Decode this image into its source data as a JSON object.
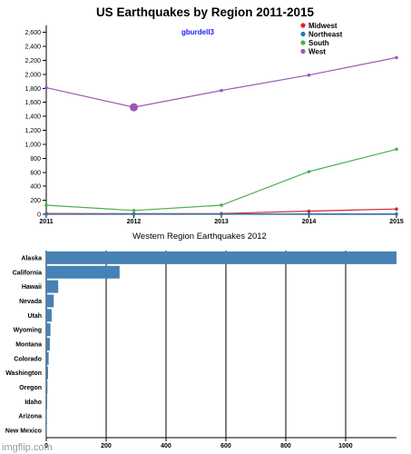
{
  "chart_data": [
    {
      "type": "line",
      "title": "US Earthquakes by Region 2011-2015",
      "annotation": "gburdell3",
      "x": [
        2011,
        2012,
        2013,
        2014,
        2015
      ],
      "ylim": [
        0,
        2700
      ],
      "yticks": [
        0,
        200,
        400,
        600,
        800,
        1000,
        1200,
        1400,
        1600,
        1800,
        2000,
        2200,
        2400,
        2600
      ],
      "ytick_labels": [
        "0",
        "200",
        "400",
        "600",
        "800",
        "1,000",
        "1,200",
        "1,400",
        "1,600",
        "1,800",
        "2,000",
        "2,200",
        "2,400",
        "2,600"
      ],
      "legend_position": "top-right",
      "highlighted_point": {
        "series": "West",
        "x": 2012
      },
      "series": [
        {
          "name": "Midwest",
          "color": "#d62728",
          "values": [
            10,
            8,
            10,
            45,
            75
          ]
        },
        {
          "name": "Northeast",
          "color": "#1f77b4",
          "values": [
            3,
            2,
            3,
            5,
            5
          ]
        },
        {
          "name": "South",
          "color": "#4caf50",
          "values": [
            130,
            55,
            130,
            610,
            930
          ]
        },
        {
          "name": "West",
          "color": "#9b59b6",
          "values": [
            1810,
            1530,
            1770,
            1990,
            2240
          ]
        }
      ]
    },
    {
      "type": "bar",
      "orientation": "horizontal",
      "title": "Western Region Earthquakes 2012",
      "bar_color": "#4682b4",
      "xlim": [
        0,
        1170
      ],
      "xticks": [
        0,
        200,
        400,
        600,
        800,
        1000
      ],
      "categories": [
        "Alaska",
        "California",
        "Hawaii",
        "Nevada",
        "Utah",
        "Wyoming",
        "Montana",
        "Colorado",
        "Washington",
        "Oregon",
        "Idaho",
        "Arizona",
        "New Mexico"
      ],
      "values": [
        1170,
        245,
        40,
        25,
        18,
        14,
        12,
        8,
        6,
        4,
        3,
        2,
        2
      ],
      "grid": "vertical"
    }
  ],
  "watermark": "imgflip.com"
}
